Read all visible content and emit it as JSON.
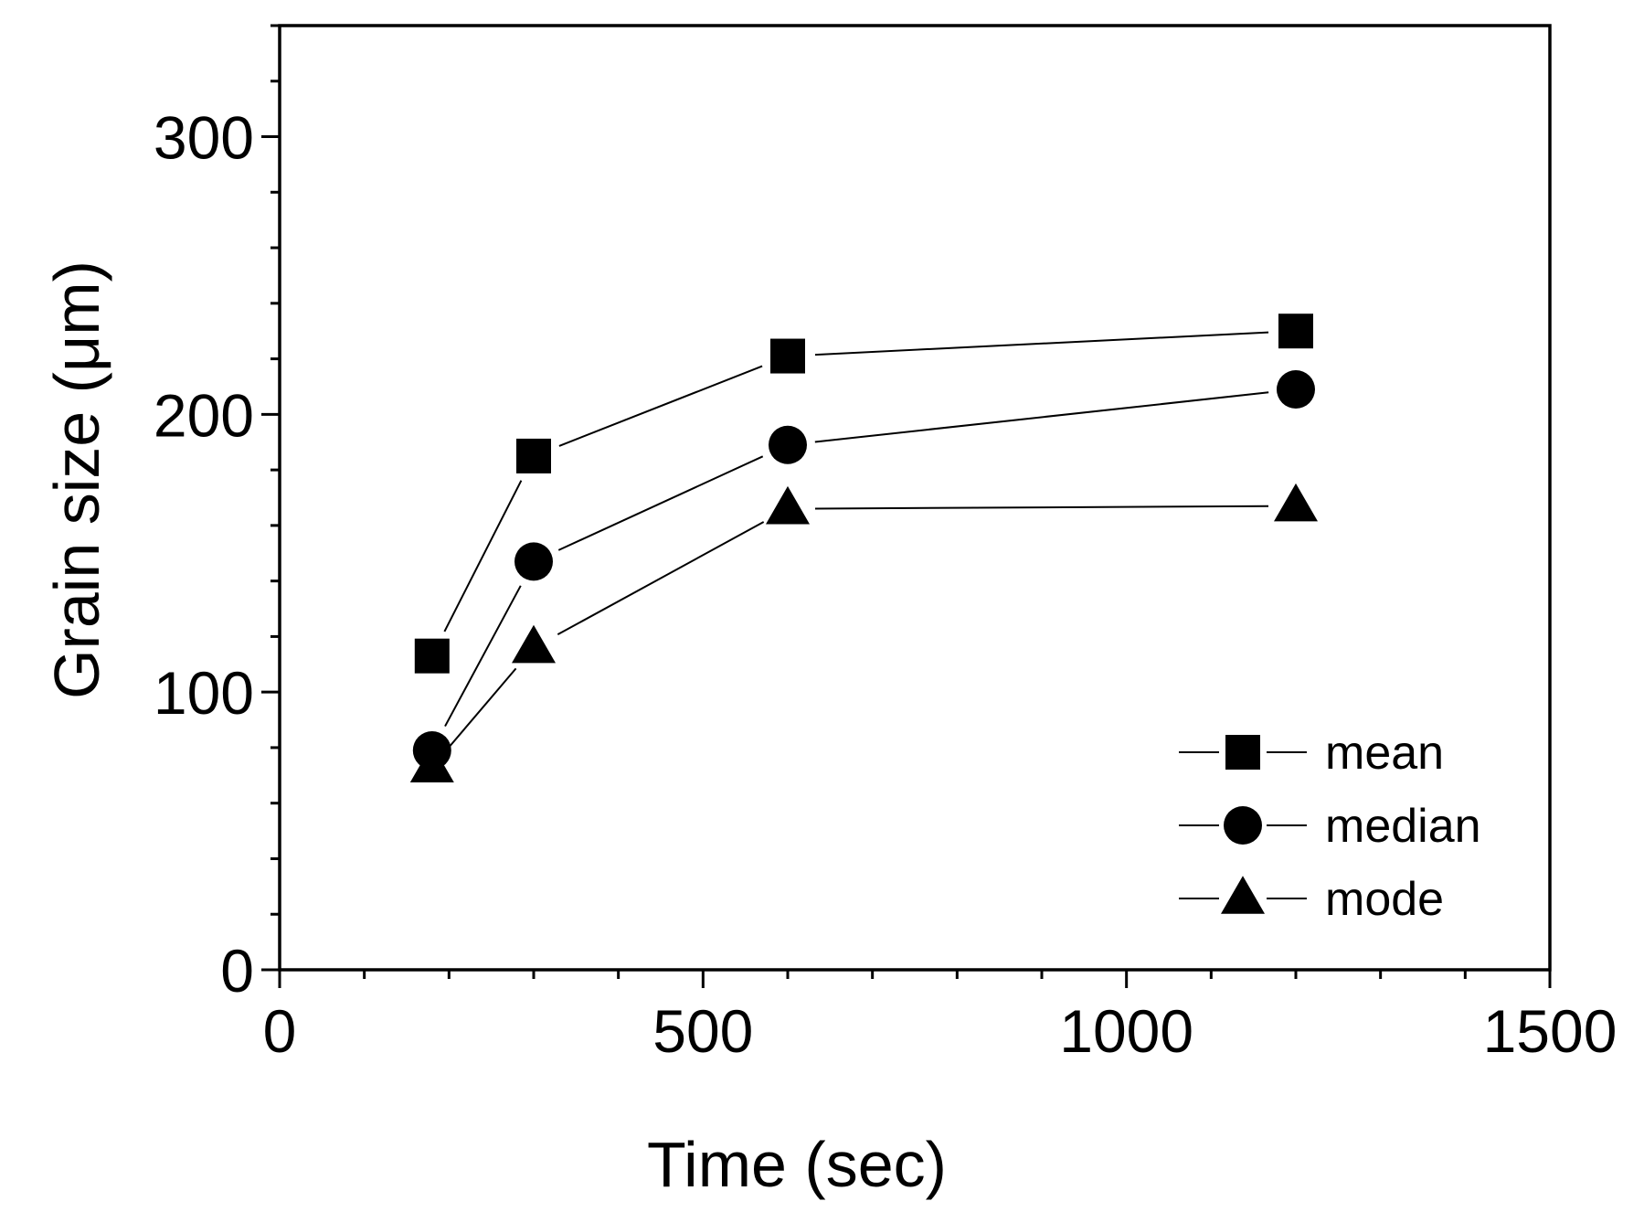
{
  "chart_data": {
    "type": "line",
    "title": "",
    "xlabel": "Time (sec)",
    "ylabel": "Grain size (μm)",
    "xlim": [
      0,
      1500
    ],
    "ylim": [
      0,
      340
    ],
    "x_ticks": [
      0,
      500,
      1000,
      1500
    ],
    "y_ticks": [
      0,
      100,
      200,
      300
    ],
    "x_tick_labels": [
      "0",
      "500",
      "1000",
      "1500"
    ],
    "y_tick_labels": [
      "0",
      "100",
      "200",
      "300"
    ],
    "x_minor_step": 100,
    "y_minor_step": 20,
    "grid": false,
    "legend_position": "bottom-right",
    "x": [
      180,
      300,
      600,
      1200
    ],
    "series": [
      {
        "name": "mean",
        "marker": "square",
        "values": [
          113,
          185,
          221,
          230
        ]
      },
      {
        "name": "median",
        "marker": "circle",
        "values": [
          79,
          147,
          189,
          209
        ]
      },
      {
        "name": "mode",
        "marker": "triangle",
        "values": [
          73,
          116,
          166,
          167
        ]
      }
    ]
  }
}
